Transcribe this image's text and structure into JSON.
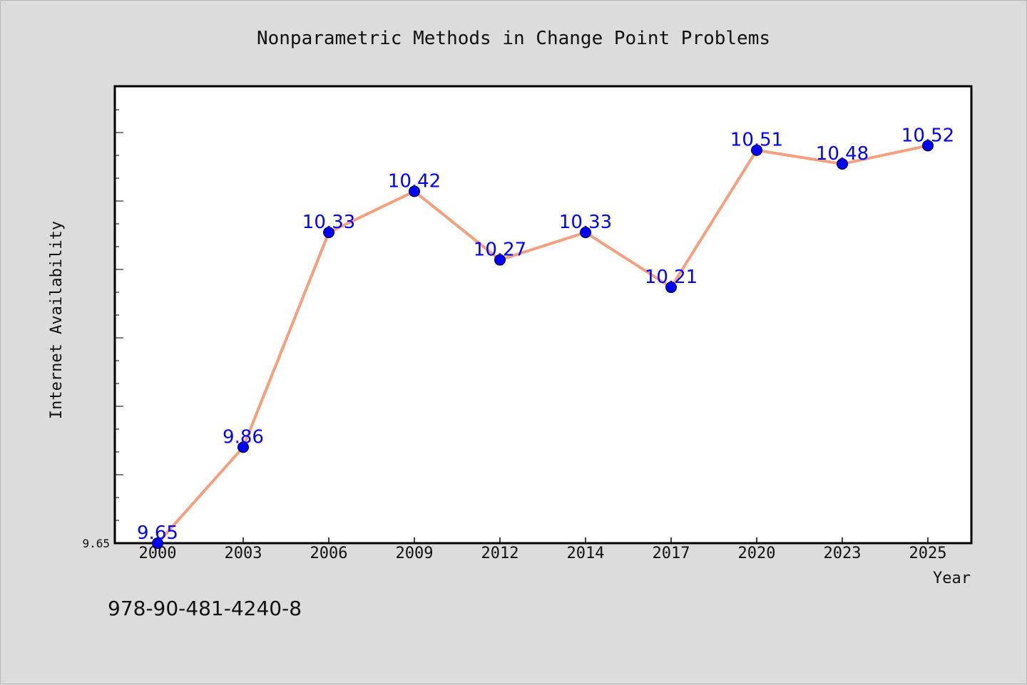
{
  "chart_data": {
    "type": "line",
    "title": "Nonparametric Methods in Change Point Problems",
    "xlabel": "Year",
    "ylabel": "Internet Availability",
    "categories": [
      "2000",
      "2003",
      "2006",
      "2009",
      "2012",
      "2014",
      "2017",
      "2020",
      "2023",
      "2025"
    ],
    "series": [
      {
        "values": [
          9.65,
          9.86,
          10.33,
          10.42,
          10.27,
          10.33,
          10.21,
          10.51,
          10.48,
          10.52
        ],
        "labels": [
          "9.65",
          "9.86",
          "10.33",
          "10.42",
          "10.27",
          "10.33",
          "10.21",
          "10.51",
          "10.48",
          "10.52"
        ]
      }
    ],
    "ylim": [
      9.65,
      10.65
    ],
    "y_tick_labels": [
      "9.65"
    ],
    "grid": false,
    "line_color": "#f4a07f",
    "marker_color": "#0000ff",
    "label_color": "#0000ff"
  },
  "footer": {
    "isbn": "978-90-481-4240-8"
  }
}
